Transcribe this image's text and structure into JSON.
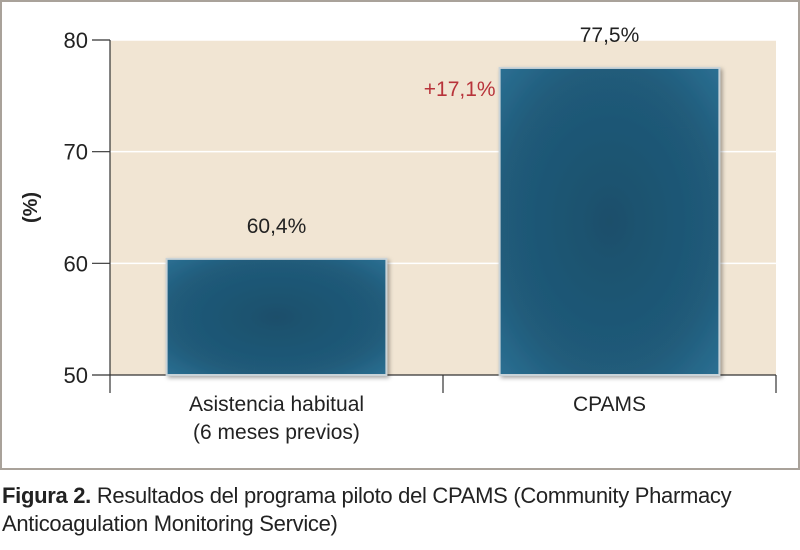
{
  "chart_data": {
    "type": "bar",
    "categories": [
      "Asistencia habitual (6 meses previos)",
      "CPAMS"
    ],
    "category_lines": [
      [
        "Asistencia habitual",
        "(6 meses previos)"
      ],
      [
        "CPAMS"
      ]
    ],
    "values": [
      60.4,
      77.5
    ],
    "value_labels": [
      "60,4%",
      "77,5%"
    ],
    "annotation": "+17,1%",
    "ylabel": "(%)",
    "xlabel": "",
    "ylim": [
      50,
      80
    ],
    "yticks": [
      50,
      60,
      70,
      80
    ],
    "grid": true,
    "legend": "none",
    "colors": {
      "bar": "#1f5a79",
      "bar_edge": "#2d7394",
      "bar_shadow": "#3b4a55",
      "plot_background": "#f1e5d3",
      "grid": "#ffffff",
      "annotation": "#b8333a",
      "frame": "#a9a29a"
    }
  },
  "caption": {
    "label": "Figura 2.",
    "text": "Resultados del programa piloto del CPAMS (Community Pharmacy Anticoagulation Monitoring Service)"
  }
}
